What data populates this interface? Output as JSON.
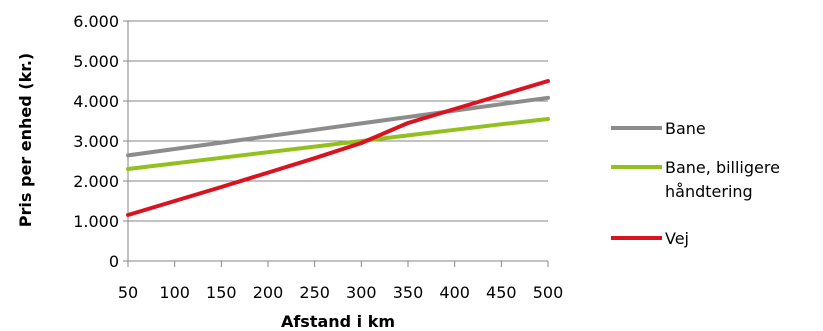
{
  "chart_data": {
    "type": "line",
    "xlabel": "Afstand i km",
    "ylabel": "Pris per enhed (kr.)",
    "x": [
      50,
      100,
      150,
      200,
      250,
      300,
      350,
      400,
      450,
      500
    ],
    "x_tick_labels": [
      "50",
      "100",
      "150",
      "200",
      "250",
      "300",
      "350",
      "400",
      "450",
      "500"
    ],
    "y_tick_labels": [
      "0",
      "1.000",
      "2.000",
      "3.000",
      "4.000",
      "5.000",
      "6.000"
    ],
    "y_ticks": [
      0,
      1000,
      2000,
      3000,
      4000,
      5000,
      6000
    ],
    "xlim": [
      50,
      500
    ],
    "ylim": [
      0,
      6000
    ],
    "grid": "horizontal",
    "legend_position": "right",
    "series": [
      {
        "name": "Bane",
        "color": "#8c8c8c",
        "values": [
          2640,
          2800,
          2960,
          3120,
          3280,
          3440,
          3600,
          3760,
          3920,
          4080
        ]
      },
      {
        "name": "Bane, billigere håndtering",
        "legend_lines": [
          "Bane, billigere",
          "håndtering"
        ],
        "color": "#92c01f",
        "values": [
          2300,
          2440,
          2580,
          2720,
          2860,
          3000,
          3140,
          3280,
          3420,
          3550
        ]
      },
      {
        "name": "Vej",
        "color": "#d9131f",
        "values": [
          1150,
          1500,
          1850,
          2210,
          2570,
          2950,
          3450,
          3800,
          4150,
          4500
        ]
      }
    ]
  }
}
